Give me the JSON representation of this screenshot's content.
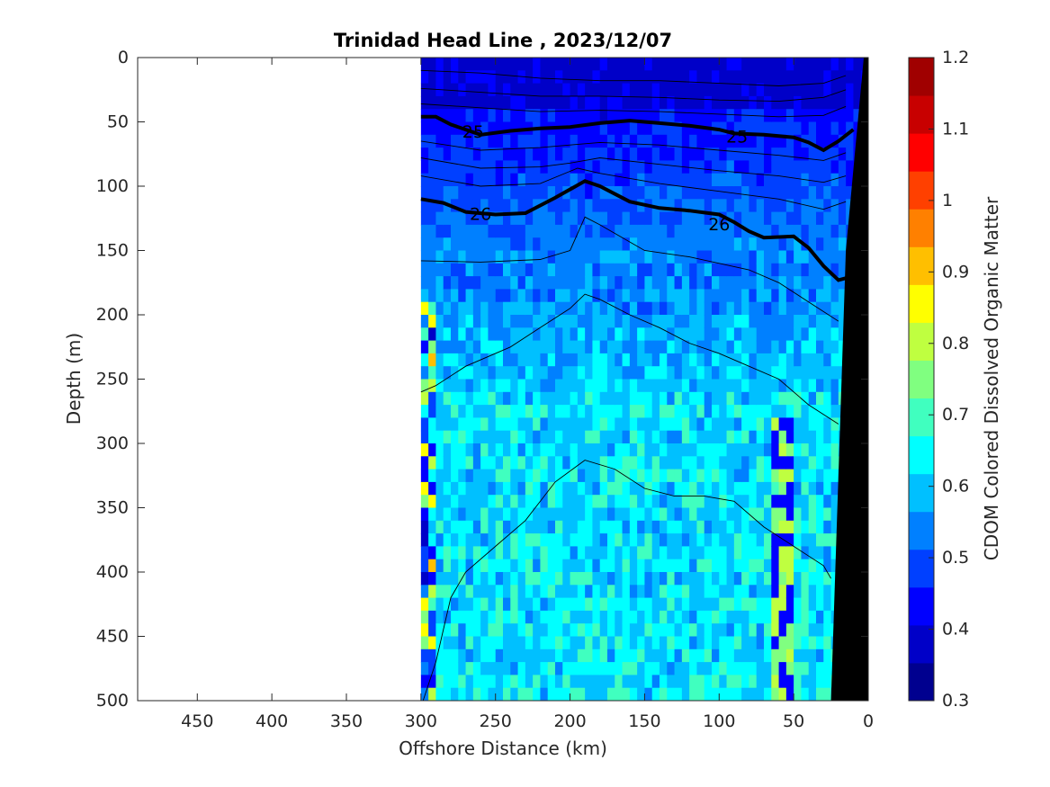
{
  "chart_data": {
    "type": "heatmap",
    "title": "Trinidad Head Line , 2023/12/07",
    "xlabel": "Offshore Distance (km)",
    "ylabel": "Depth (m)",
    "colorbar_label": "CDOM Colored Dissolved Organic Matter",
    "xlim": [
      490,
      0
    ],
    "ylim": [
      500,
      0
    ],
    "x_reversed": true,
    "y_reversed": true,
    "xticks": [
      "450",
      "400",
      "350",
      "300",
      "250",
      "200",
      "150",
      "100",
      "50",
      "0"
    ],
    "xtick_values": [
      450,
      400,
      350,
      300,
      250,
      200,
      150,
      100,
      50,
      0
    ],
    "yticks": [
      "0",
      "50",
      "100",
      "150",
      "200",
      "250",
      "300",
      "350",
      "400",
      "450",
      "500"
    ],
    "ytick_values": [
      0,
      50,
      100,
      150,
      200,
      250,
      300,
      350,
      400,
      450,
      500
    ],
    "clim": [
      0.3,
      1.2
    ],
    "cticks": [
      "0.3",
      "0.4",
      "0.5",
      "0.6",
      "0.7",
      "0.8",
      "0.9",
      "1",
      "1.1",
      "1.2"
    ],
    "ctick_values": [
      0.3,
      0.4,
      0.5,
      0.6,
      0.7,
      0.8,
      0.9,
      1.0,
      1.1,
      1.2
    ],
    "colormap": [
      "#00008f",
      "#0000c8",
      "#0000ff",
      "#0040ff",
      "#0080ff",
      "#00c0ff",
      "#00ffff",
      "#40ffbf",
      "#80ff80",
      "#bfff40",
      "#ffff00",
      "#ffbf00",
      "#ff8000",
      "#ff4000",
      "#ff0000",
      "#c80000",
      "#a00000"
    ],
    "data_extent_km": [
      300,
      0
    ],
    "bathymetry_color": "#000000",
    "contour_labels": [
      {
        "text": "25",
        "x": 265,
        "y": 58
      },
      {
        "text": "25",
        "x": 88,
        "y": 62
      },
      {
        "text": "26",
        "x": 260,
        "y": 122
      },
      {
        "text": "26",
        "x": 100,
        "y": 130
      }
    ],
    "isopycnals_bold": [
      {
        "name": "25",
        "points": [
          [
            300,
            46
          ],
          [
            290,
            46
          ],
          [
            280,
            52
          ],
          [
            260,
            60
          ],
          [
            240,
            57
          ],
          [
            220,
            55
          ],
          [
            200,
            54
          ],
          [
            180,
            51
          ],
          [
            160,
            49
          ],
          [
            140,
            51
          ],
          [
            120,
            53
          ],
          [
            100,
            56
          ],
          [
            90,
            59
          ],
          [
            70,
            60
          ],
          [
            50,
            62
          ],
          [
            40,
            66
          ],
          [
            30,
            72
          ],
          [
            20,
            65
          ],
          [
            10,
            56
          ]
        ]
      },
      {
        "name": "26",
        "points": [
          [
            300,
            110
          ],
          [
            285,
            113
          ],
          [
            270,
            120
          ],
          [
            250,
            122
          ],
          [
            230,
            121
          ],
          [
            210,
            109
          ],
          [
            190,
            96
          ],
          [
            180,
            100
          ],
          [
            160,
            112
          ],
          [
            140,
            117
          ],
          [
            120,
            119
          ],
          [
            100,
            122
          ],
          [
            90,
            128
          ],
          [
            80,
            135
          ],
          [
            70,
            140
          ],
          [
            50,
            139
          ],
          [
            40,
            148
          ],
          [
            30,
            162
          ],
          [
            20,
            173
          ],
          [
            10,
            170
          ]
        ]
      }
    ],
    "isopycnals_thin": [
      {
        "points": [
          [
            300,
            158
          ],
          [
            260,
            159
          ],
          [
            220,
            157
          ],
          [
            200,
            150
          ],
          [
            190,
            124
          ],
          [
            180,
            130
          ],
          [
            150,
            150
          ],
          [
            120,
            155
          ],
          [
            100,
            160
          ],
          [
            80,
            165
          ],
          [
            60,
            175
          ],
          [
            40,
            190
          ],
          [
            20,
            205
          ]
        ]
      },
      {
        "points": [
          [
            300,
            260
          ],
          [
            290,
            255
          ],
          [
            270,
            240
          ],
          [
            240,
            225
          ],
          [
            220,
            210
          ],
          [
            200,
            195
          ],
          [
            190,
            184
          ],
          [
            180,
            188
          ],
          [
            160,
            200
          ],
          [
            140,
            210
          ],
          [
            120,
            222
          ],
          [
            100,
            230
          ],
          [
            80,
            240
          ],
          [
            60,
            250
          ],
          [
            40,
            270
          ],
          [
            20,
            285
          ]
        ]
      },
      {
        "points": [
          [
            300,
            505
          ],
          [
            290,
            470
          ],
          [
            280,
            420
          ],
          [
            270,
            400
          ],
          [
            250,
            380
          ],
          [
            230,
            360
          ],
          [
            210,
            330
          ],
          [
            190,
            313
          ],
          [
            170,
            320
          ],
          [
            150,
            335
          ],
          [
            130,
            341
          ],
          [
            110,
            341
          ],
          [
            90,
            345
          ],
          [
            70,
            365
          ],
          [
            50,
            380
          ],
          [
            30,
            395
          ],
          [
            25,
            405
          ]
        ]
      },
      {
        "points": [
          [
            300,
            10
          ],
          [
            260,
            12
          ],
          [
            220,
            16
          ],
          [
            180,
            18
          ],
          [
            140,
            18
          ],
          [
            100,
            20
          ],
          [
            60,
            22
          ],
          [
            30,
            20
          ],
          [
            15,
            14
          ]
        ]
      },
      {
        "points": [
          [
            300,
            24
          ],
          [
            260,
            27
          ],
          [
            220,
            30
          ],
          [
            180,
            30
          ],
          [
            140,
            31
          ],
          [
            100,
            33
          ],
          [
            60,
            34
          ],
          [
            30,
            31
          ],
          [
            15,
            25
          ]
        ]
      },
      {
        "points": [
          [
            300,
            36
          ],
          [
            260,
            39
          ],
          [
            220,
            42
          ],
          [
            180,
            41
          ],
          [
            140,
            42
          ],
          [
            100,
            44
          ],
          [
            60,
            46
          ],
          [
            30,
            45
          ],
          [
            15,
            38
          ]
        ]
      },
      {
        "points": [
          [
            300,
            65
          ],
          [
            260,
            72
          ],
          [
            220,
            70
          ],
          [
            200,
            68
          ],
          [
            180,
            66
          ],
          [
            140,
            68
          ],
          [
            100,
            72
          ],
          [
            60,
            76
          ],
          [
            30,
            80
          ],
          [
            15,
            74
          ]
        ]
      },
      {
        "points": [
          [
            300,
            78
          ],
          [
            260,
            86
          ],
          [
            220,
            85
          ],
          [
            200,
            82
          ],
          [
            180,
            78
          ],
          [
            140,
            83
          ],
          [
            100,
            88
          ],
          [
            60,
            92
          ],
          [
            30,
            97
          ],
          [
            15,
            92
          ]
        ]
      },
      {
        "points": [
          [
            300,
            92
          ],
          [
            260,
            100
          ],
          [
            220,
            98
          ],
          [
            195,
            86
          ],
          [
            180,
            90
          ],
          [
            140,
            98
          ],
          [
            100,
            104
          ],
          [
            60,
            110
          ],
          [
            30,
            118
          ],
          [
            15,
            112
          ]
        ]
      }
    ],
    "grid": false
  }
}
